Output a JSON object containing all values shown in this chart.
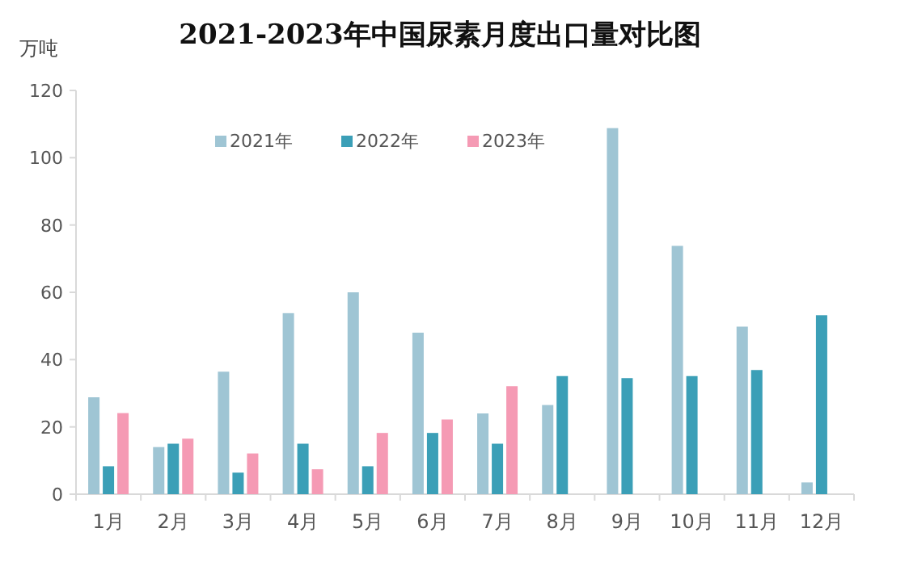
{
  "chart_data": {
    "type": "bar",
    "title": "2021-2023年中国尿素月度出口量对比图",
    "ylabel": "万吨",
    "categories": [
      "1月",
      "2月",
      "3月",
      "4月",
      "5月",
      "6月",
      "7月",
      "8月",
      "9月",
      "10月",
      "11月",
      "12月"
    ],
    "series": [
      {
        "name": "2021年",
        "color": "#9fc5d4",
        "values": [
          28.8,
          14,
          36.4,
          53.8,
          60,
          48,
          24,
          26.5,
          108.8,
          73.8,
          49.8,
          3.5
        ]
      },
      {
        "name": "2022年",
        "color": "#3b9fb7",
        "values": [
          8.3,
          15,
          6.4,
          15,
          8.3,
          18.2,
          15,
          35.1,
          34.5,
          35.1,
          36.9,
          53.2
        ]
      },
      {
        "name": "2023年",
        "color": "#f59ab4",
        "values": [
          24.1,
          16.5,
          12.1,
          7.4,
          18.2,
          22.2,
          32.1,
          null,
          null,
          null,
          null,
          null
        ]
      }
    ],
    "ylim": [
      0,
      120
    ],
    "yticks": [
      0,
      20,
      40,
      60,
      80,
      100,
      120
    ],
    "grid": false,
    "legend": "top"
  }
}
